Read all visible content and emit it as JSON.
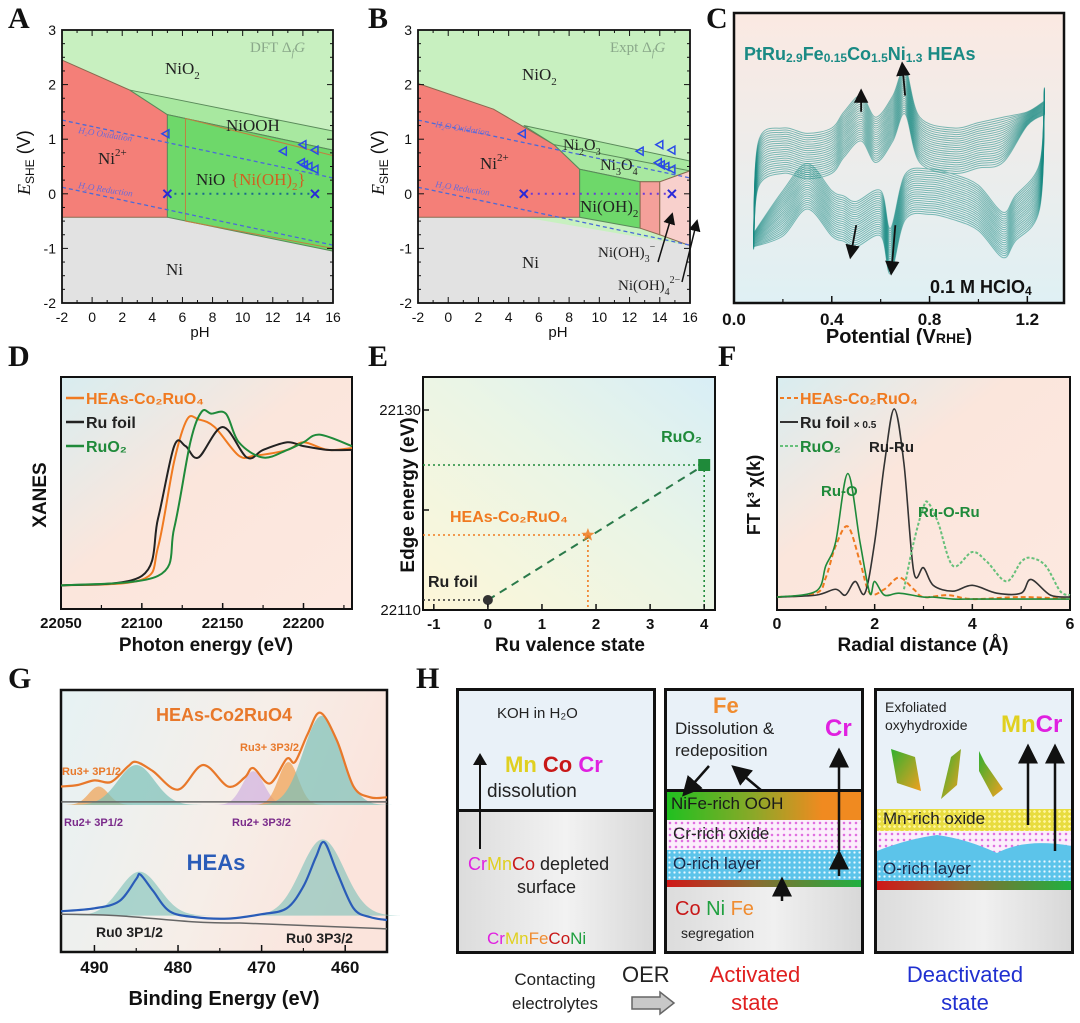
{
  "panels": {
    "A": {
      "letter": "A"
    },
    "B": {
      "letter": "B"
    },
    "C": {
      "letter": "C"
    },
    "D": {
      "letter": "D"
    },
    "E": {
      "letter": "E"
    },
    "F": {
      "letter": "F"
    },
    "G": {
      "letter": "G"
    },
    "H": {
      "letter": "H"
    }
  },
  "chart_data": [
    {
      "id": "A",
      "type": "area",
      "title": "DFT ΔfG",
      "xlabel": "pH",
      "ylabel": "E_SHE (V)",
      "xlim": [
        -2,
        16
      ],
      "ylim": [
        -2,
        3
      ],
      "xticks": [
        "-2",
        "0",
        "2",
        "4",
        "6",
        "8",
        "10",
        "12",
        "14",
        "16"
      ],
      "yticks": [
        "-2",
        "-1",
        "0",
        "1",
        "2",
        "3"
      ],
      "regions": [
        {
          "label": "NiO2",
          "color": "#c8f0c0"
        },
        {
          "label": "Ni2+",
          "color": "#f47f78"
        },
        {
          "label": "NiOOH",
          "color": "#a8e8a0"
        },
        {
          "label": "NiO",
          "color": "#6ed86a"
        },
        {
          "label": "{Ni(OH)2}",
          "color": "#6ed86a"
        },
        {
          "label": "Ni",
          "color": "#e2e2e2"
        }
      ],
      "lines": [
        {
          "label": "H2O Oxidation",
          "x": [
            -2,
            16
          ],
          "y": [
            1.35,
            0.29
          ]
        },
        {
          "label": "H2O Reduction",
          "x": [
            -2,
            16
          ],
          "y": [
            0.12,
            -0.94
          ]
        }
      ],
      "triangle_points": {
        "x": [
          4.9,
          12.7,
          14.0,
          14.8,
          13.9,
          14.1,
          14.4,
          14.8
        ],
        "y": [
          1.1,
          0.78,
          0.9,
          0.8,
          0.57,
          0.53,
          0.5,
          0.45
        ]
      },
      "cross_points": {
        "x": [
          5.0,
          14.8
        ],
        "y": [
          0,
          0
        ]
      }
    },
    {
      "id": "B",
      "type": "area",
      "title": "Expt ΔfG",
      "xlabel": "pH",
      "ylabel": "E_SHE (V)",
      "xlim": [
        -2,
        16
      ],
      "ylim": [
        -2,
        3
      ],
      "xticks": [
        "-2",
        "0",
        "2",
        "4",
        "6",
        "8",
        "10",
        "12",
        "14",
        "16"
      ],
      "yticks": [
        "-2",
        "-1",
        "0",
        "1",
        "2",
        "3"
      ],
      "regions": [
        {
          "label": "NiO2",
          "color": "#c8f0c0"
        },
        {
          "label": "Ni2+",
          "color": "#f47f78"
        },
        {
          "label": "Ni2O3",
          "color": "#a8e8a0"
        },
        {
          "label": "Ni3O4",
          "color": "#a8e8a0"
        },
        {
          "label": "Ni(OH)2",
          "color": "#6ed86a"
        },
        {
          "label": "Ni(OH)3-",
          "color": "#f4a09a"
        },
        {
          "label": "Ni(OH)4 2-",
          "color": "#f8d0cc"
        },
        {
          "label": "Ni",
          "color": "#e2e2e2"
        }
      ],
      "lines": [
        {
          "label": "H2O Oxidation",
          "x": [
            -2,
            16
          ],
          "y": [
            1.35,
            0.29
          ]
        },
        {
          "label": "H2O Reduction",
          "x": [
            -2,
            16
          ],
          "y": [
            0.12,
            -0.94
          ]
        }
      ],
      "triangle_points": {
        "x": [
          4.9,
          12.7,
          14.0,
          14.8,
          13.9,
          14.1,
          14.4,
          14.8
        ],
        "y": [
          1.1,
          0.78,
          0.9,
          0.8,
          0.57,
          0.53,
          0.5,
          0.45
        ]
      },
      "cross_points": {
        "x": [
          5.0,
          14.8
        ],
        "y": [
          0,
          0
        ]
      }
    },
    {
      "id": "C",
      "type": "line",
      "title": "PtRu2.9Fe0.15Co1.5Ni1.3 HEAs",
      "annotation": "0.1 M HClO4",
      "xlabel": "Potential (V_RHE)",
      "ylabel": "",
      "xlim": [
        0.0,
        1.35
      ],
      "xticks": [
        "0.0",
        "0.4",
        "0.8",
        "1.2"
      ],
      "series": [
        {
          "name": "CV anodic",
          "x": [
            0.08,
            0.1,
            0.2,
            0.3,
            0.4,
            0.45,
            0.52,
            0.58,
            0.65,
            0.7,
            0.76,
            0.9,
            1.0,
            1.1,
            1.2,
            1.27
          ],
          "y": [
            0.2,
            0.55,
            0.6,
            0.58,
            0.6,
            0.66,
            0.72,
            0.64,
            0.72,
            0.82,
            0.64,
            0.6,
            0.62,
            0.64,
            0.66,
            0.7
          ]
        },
        {
          "name": "CV cathodic",
          "x": [
            1.27,
            1.25,
            1.15,
            1.1,
            1.0,
            0.9,
            0.8,
            0.7,
            0.64,
            0.6,
            0.5,
            0.45,
            0.4,
            0.3,
            0.2,
            0.08
          ],
          "y": [
            0.7,
            0.3,
            0.18,
            0.12,
            0.22,
            0.26,
            0.28,
            0.26,
            0.06,
            0.2,
            0.16,
            0.18,
            0.2,
            0.3,
            0.2,
            0.16
          ]
        }
      ],
      "color": "#1a8a84"
    },
    {
      "id": "D",
      "type": "line",
      "xlabel": "Photon energy (eV)",
      "ylabel": "XANES",
      "xlim": [
        22050,
        22230
      ],
      "xticks": [
        "22050",
        "22100",
        "22150",
        "22200"
      ],
      "legend": "top-left",
      "series": [
        {
          "name": "HEAs-Co2RuO4",
          "color": "#f07a20",
          "x": [
            22050,
            22100,
            22110,
            22120,
            22128,
            22135,
            22145,
            22160,
            22170,
            22190,
            22200,
            22215,
            22230
          ],
          "y": [
            0.05,
            0.08,
            0.25,
            0.7,
            0.92,
            0.92,
            0.88,
            0.73,
            0.73,
            0.76,
            0.8,
            0.76,
            0.77
          ]
        },
        {
          "name": "Ru foil",
          "color": "#222222",
          "x": [
            22050,
            22100,
            22110,
            22120,
            22127,
            22135,
            22150,
            22165,
            22175,
            22190,
            22200,
            22215,
            22230
          ],
          "y": [
            0.05,
            0.1,
            0.4,
            0.78,
            0.78,
            0.72,
            0.88,
            0.72,
            0.76,
            0.8,
            0.78,
            0.76,
            0.76
          ]
        },
        {
          "name": "RuO2",
          "color": "#1f8a3a",
          "x": [
            22050,
            22110,
            22120,
            22130,
            22137,
            22143,
            22152,
            22160,
            22175,
            22190,
            22200,
            22210,
            22230
          ],
          "y": [
            0.05,
            0.1,
            0.35,
            0.8,
            0.96,
            0.95,
            0.95,
            0.8,
            0.72,
            0.76,
            0.8,
            0.84,
            0.78
          ]
        }
      ]
    },
    {
      "id": "E",
      "type": "scatter",
      "xlabel": "Ru valence state",
      "ylabel": "Edge energy (eV)",
      "xlim": [
        -1.2,
        4.2
      ],
      "ylim": [
        22110,
        22130
      ],
      "xticks": [
        "-1",
        "0",
        "1",
        "2",
        "3",
        "4"
      ],
      "yticks": [
        "22110",
        "22130"
      ],
      "points": [
        {
          "label": "Ru foil",
          "x": 0,
          "y": 22111,
          "color": "#333333",
          "marker": "circle"
        },
        {
          "label": "HEAs-Co2RuO4",
          "x": 1.85,
          "y": 22117.5,
          "color": "#f07a20",
          "marker": "star"
        },
        {
          "label": "RuO2",
          "x": 4,
          "y": 22124.5,
          "color": "#1f8a3a",
          "marker": "square"
        }
      ],
      "fit_line": {
        "x": [
          0,
          4
        ],
        "y": [
          22111,
          22124.5
        ]
      }
    },
    {
      "id": "F",
      "type": "line",
      "xlabel": "Radial distance (Å)",
      "ylabel": "FT k3 χ(k)",
      "xlim": [
        0,
        6
      ],
      "xticks": [
        "0",
        "2",
        "4",
        "6"
      ],
      "legend": "top-left",
      "annotations": [
        "Ru-O",
        "Ru-Ru",
        "Ru-O-Ru"
      ],
      "series": [
        {
          "name": "HEAs-Co2RuO4",
          "color": "#f07a20",
          "x": [
            0,
            0.8,
            1.0,
            1.2,
            1.45,
            1.7,
            1.9,
            2.2,
            2.5,
            2.8,
            3.0,
            3.5,
            4,
            5,
            6
          ],
          "y": [
            0.02,
            0.04,
            0.12,
            0.28,
            0.38,
            0.2,
            0.04,
            0.06,
            0.12,
            0.06,
            0.02,
            0.03,
            0.01,
            0.02,
            0.01
          ]
        },
        {
          "name": "Ru foil ×0.5",
          "color": "#333333",
          "x": [
            0,
            0.8,
            1.2,
            1.4,
            1.6,
            1.8,
            2.0,
            2.2,
            2.4,
            2.6,
            2.8,
            3.0,
            3.2,
            3.6,
            4.0,
            4.5,
            5.0,
            5.2,
            5.6,
            6
          ],
          "y": [
            0.02,
            0.03,
            0.06,
            0.03,
            0.1,
            0.04,
            0.3,
            0.7,
            0.98,
            0.7,
            0.15,
            0.17,
            0.08,
            0.05,
            0.08,
            0.04,
            0.04,
            0.11,
            0.03,
            0.02
          ]
        },
        {
          "name": "RuO2",
          "color": "#1f8a3a",
          "x": [
            0,
            0.8,
            1.0,
            1.2,
            1.45,
            1.7,
            1.9,
            2.0,
            2.2,
            2.5,
            3.0,
            3.2,
            3.6,
            4,
            4.5,
            5.2,
            5.6,
            6
          ],
          "y": [
            0.02,
            0.05,
            0.18,
            0.3,
            0.65,
            0.3,
            0.04,
            0.1,
            0.03,
            0.04,
            0.02,
            0.02,
            0.01,
            0.01,
            0.01,
            0.01,
            0.01,
            0.01
          ]
        },
        {
          "name": "RuO2 (fit dotted)",
          "color": "#66c07a",
          "x": [
            2.6,
            2.8,
            3.0,
            3.1,
            3.3,
            3.6,
            4.0,
            4.3,
            4.7,
            5.0,
            5.2,
            5.5,
            5.8,
            6
          ],
          "y": [
            0.06,
            0.3,
            0.48,
            0.5,
            0.4,
            0.18,
            0.25,
            0.2,
            0.1,
            0.2,
            0.22,
            0.18,
            0.05,
            0.03
          ]
        }
      ]
    },
    {
      "id": "G",
      "type": "line",
      "xlabel": "Binding Energy (eV)",
      "ylabel": "",
      "xlim": [
        494,
        455
      ],
      "xticks": [
        "490",
        "480",
        "470",
        "460"
      ],
      "labels": {
        "top_title": "HEAs-Co2RuO4",
        "bottom_title": "HEAs",
        "ru3_p12": "Ru3+ 3P1/2",
        "ru3_p32": "Ru3+ 3P3/2",
        "ru2_p12": "Ru2+ 3P1/2",
        "ru2_p32": "Ru2+ 3P3/2",
        "ru0_p12": "Ru0 3P1/2",
        "ru0_p32": "Ru0 3P3/2"
      },
      "series": [
        {
          "name": "HEAs-Co2RuO4 envelope",
          "color": "#e8782a",
          "x": [
            494,
            492,
            490,
            488,
            486,
            485,
            483,
            480,
            477,
            474,
            472,
            471,
            469,
            467,
            466,
            464.5,
            463,
            461,
            459,
            457,
            455
          ],
          "y": [
            0.12,
            0.13,
            0.16,
            0.15,
            0.25,
            0.28,
            0.22,
            0.1,
            0.26,
            0.12,
            0.18,
            0.24,
            0.14,
            0.3,
            0.28,
            0.46,
            0.6,
            0.42,
            0.12,
            0.05,
            0.05
          ]
        },
        {
          "name": "HEAs envelope",
          "color": "#2a5cb8",
          "x": [
            494,
            490,
            487,
            485,
            484.5,
            483,
            481,
            478,
            474,
            470,
            467,
            465,
            463.5,
            462.5,
            461,
            459,
            457,
            455
          ],
          "y": [
            0.08,
            0.1,
            0.15,
            0.3,
            0.33,
            0.22,
            0.08,
            0.04,
            0.03,
            0.06,
            0.1,
            0.25,
            0.45,
            0.55,
            0.35,
            0.1,
            0.04,
            0.02
          ]
        }
      ]
    }
  ],
  "panelA": {
    "title": "DFT Δ",
    "title_f": "f",
    "title_g": "G",
    "ox": "H₂O Oxidation",
    "red": "H₂O Reduction",
    "niO2": "NiO",
    "niO2_sub": "2",
    "ni2": "Ni",
    "ni2_sup": "2+",
    "niooh": "NiOOH",
    "nio": "NiO",
    "nioh2": "{Ni(OH)",
    "nioh2_sub": "2",
    "nioh2_end": "}",
    "ni": "Ni",
    "ylabel_e": "E",
    "ylabel_sub": "SHE",
    "ylabel_v": " (V)",
    "xlabel": "pH"
  },
  "panelB": {
    "title": "Expt Δ",
    "title_f": "f",
    "title_g": "G",
    "ox": "H₂O Oxidation",
    "red": "H₂O Reduction",
    "niO2": "NiO",
    "niO2_sub": "2",
    "ni2": "Ni",
    "ni2_sup": "2+",
    "ni2o3": "Ni",
    "ni2o3_a": "2",
    "ni2o3_b": "O",
    "ni2o3_c": "3",
    "ni3o4": "Ni",
    "ni3o4_a": "3",
    "ni3o4_b": "O",
    "ni3o4_c": "4",
    "nioh2": "Ni(OH)",
    "nioh2_sub": "2",
    "nioh3": "Ni(OH)",
    "nioh3_sub": "3",
    "nioh3_sup": "−",
    "nioh4": "Ni(OH)",
    "nioh4_sub": "4",
    "nioh4_sup": "2−",
    "ni": "Ni",
    "ylabel_e": "E",
    "ylabel_sub": "SHE",
    "ylabel_v": " (V)",
    "xlabel": "pH"
  },
  "panelC": {
    "title_pt": "PtRu",
    "s1": "2.9",
    "fe": "Fe",
    "s2": "0.15",
    "co": "Co",
    "s3": "1.5",
    "ni": "Ni",
    "s4": "1.3",
    "heas": " HEAs",
    "electrolyte": "0.1 M HClO",
    "electrolyte_sub": "4",
    "xlabel": "Potential (V",
    "xlabel_sub": "RHE",
    "xlabel_end": ")"
  },
  "panelD": {
    "legend": [
      "HEAs-Co₂RuO₄",
      "Ru foil",
      "RuO₂"
    ],
    "ylabel": "XANES",
    "xlabel": "Photon energy (eV)"
  },
  "panelE": {
    "ruo2": "RuO₂",
    "heas": "HEAs-Co₂RuO₄",
    "rufoil": "Ru foil",
    "ylabel": "Edge energy (eV)",
    "xlabel": "Ru valence state"
  },
  "panelF": {
    "legend": [
      "HEAs-Co₂RuO₄",
      "Ru foil",
      "RuO₂"
    ],
    "legend_scale": "× 0.5",
    "ruo": "Ru-O",
    "ruru": "Ru-Ru",
    "ruoru": "Ru-O-Ru",
    "ylabel": "FT k³ χ(k)",
    "xlabel": "Radial distance (Å)"
  },
  "panelG": {
    "xlabel": "Binding Energy (eV)"
  },
  "panelH": {
    "box1": {
      "koh": "KOH in H₂O",
      "mn": "Mn",
      "co": "Co",
      "cr": "Cr",
      "dissolution": "dissolution",
      "dep_cr": "Cr",
      "dep_mn": "Mn",
      "dep_co": "Co",
      "depleted": " depleted",
      "surface": "surface",
      "alloy": [
        "Cr",
        "Mn",
        "Fe",
        "Co",
        "Ni"
      ]
    },
    "box2": {
      "fe": "Fe",
      "dissolution": "Dissolution &",
      "redeposition": "redeposition",
      "cr": "Cr",
      "nife": "NiFe-rich OOH",
      "croxide": "Cr-rich oxide",
      "orich": "O-rich layer",
      "co": "Co",
      "ni": "Ni",
      "fe2": "Fe",
      "segregation": "segregation"
    },
    "box3": {
      "exfoliated": "Exfoliated",
      "oxyhydroxide": "oxyhydroxide",
      "mn": "Mn",
      "cr": "Cr",
      "mnoxide": "Mn-rich oxide",
      "orich": "O-rich layer"
    },
    "captions": {
      "contacting": "Contacting",
      "electrolytes": "electrolytes",
      "oer": "OER",
      "activated1": "Activated",
      "activated2": "state",
      "deactivated1": "Deactivated",
      "deactivated2": "state"
    },
    "colors": {
      "mn": "#e0d020",
      "co": "#c81818",
      "cr": "#e020e0",
      "fe": "#f08c30",
      "ni": "#20a040",
      "activated": "#e02020",
      "deactivated": "#2030d0"
    }
  }
}
